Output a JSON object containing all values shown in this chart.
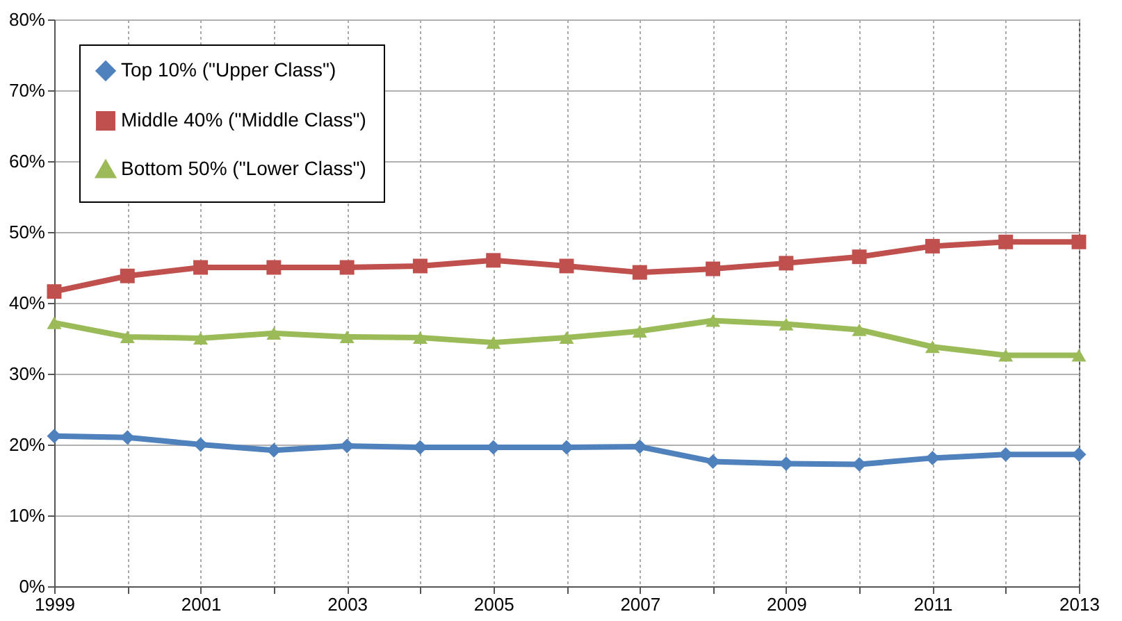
{
  "chart_data": {
    "type": "line",
    "x": [
      1999,
      2000,
      2001,
      2002,
      2003,
      2004,
      2005,
      2006,
      2007,
      2008,
      2009,
      2010,
      2011,
      2012,
      2013
    ],
    "series": [
      {
        "name": "Top 10% (\"Upper Class\")",
        "color": "#4f81bd",
        "marker": "diamond",
        "values": [
          21.2,
          21.0,
          20.0,
          19.2,
          19.8,
          19.6,
          19.6,
          19.6,
          19.7,
          17.6,
          17.3,
          17.2,
          18.1,
          18.6,
          18.6
        ]
      },
      {
        "name": "Middle 40% (\"Middle Class\")",
        "color": "#c0504d",
        "marker": "square",
        "values": [
          41.6,
          43.8,
          45.0,
          45.0,
          45.0,
          45.2,
          46.0,
          45.2,
          44.3,
          44.8,
          45.6,
          46.5,
          48.0,
          48.6,
          48.6
        ]
      },
      {
        "name": "Bottom 50% (\"Lower Class\")",
        "color": "#9bbb59",
        "marker": "triangle",
        "values": [
          37.2,
          35.2,
          35.0,
          35.7,
          35.2,
          35.1,
          34.4,
          35.1,
          36.0,
          37.5,
          37.0,
          36.2,
          33.8,
          32.6,
          32.6
        ]
      }
    ],
    "xlim": [
      1999,
      2013
    ],
    "xticks": [
      1999,
      {
        "value": 2000,
        "label": null
      },
      2001,
      {
        "value": 2002,
        "label": null
      },
      2003,
      {
        "value": 2004,
        "label": null
      },
      2005,
      {
        "value": 2006,
        "label": null
      },
      2007,
      {
        "value": 2008,
        "label": null
      },
      2009,
      {
        "value": 2010,
        "label": null
      },
      2011,
      {
        "value": 2012,
        "label": null
      },
      2013
    ],
    "ylim": [
      0,
      80
    ],
    "yticks": [
      {
        "value": 0,
        "label": "0%"
      },
      {
        "value": 10,
        "label": "10%"
      },
      {
        "value": 20,
        "label": "20%"
      },
      {
        "value": 30,
        "label": "30%"
      },
      {
        "value": 40,
        "label": "40%"
      },
      {
        "value": 50,
        "label": "50%"
      },
      {
        "value": 60,
        "label": "60%"
      },
      {
        "value": 70,
        "label": "70%"
      },
      {
        "value": 80,
        "label": "80%"
      }
    ],
    "grid": true,
    "legend": "top left",
    "line_style": "solid"
  }
}
